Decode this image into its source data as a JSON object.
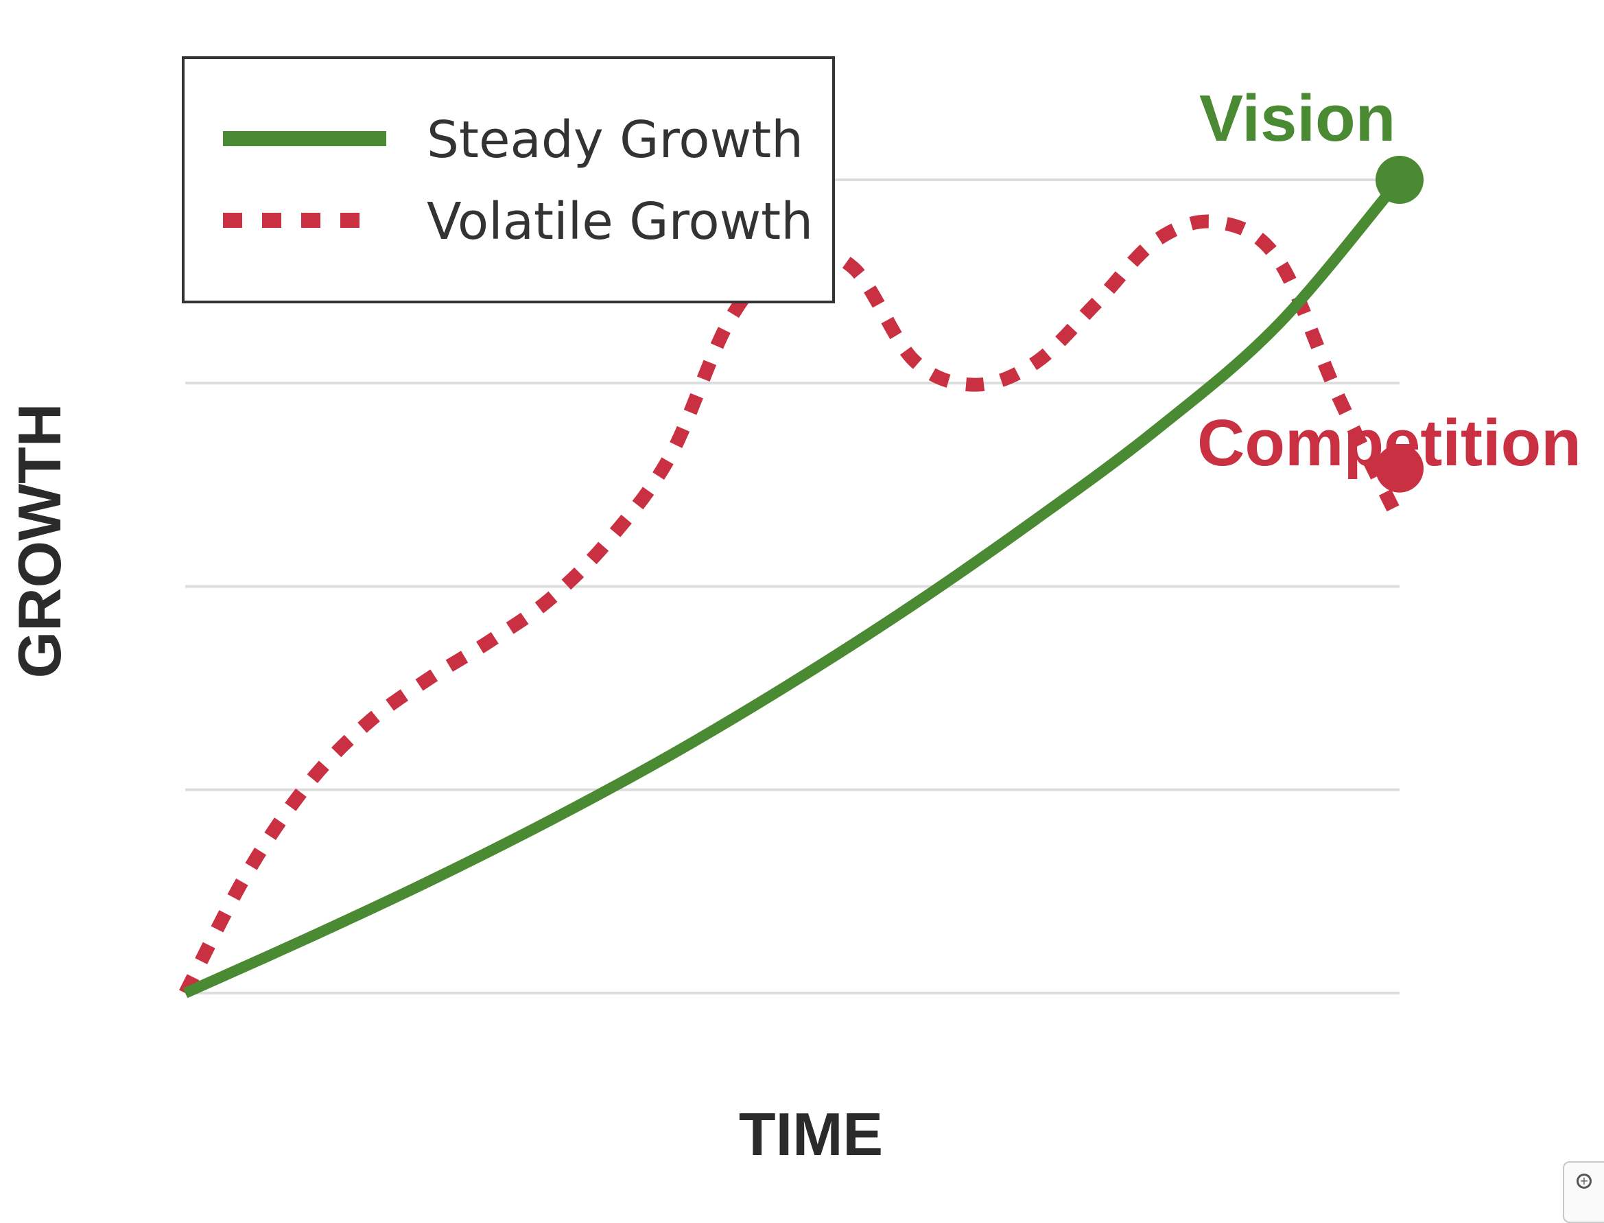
{
  "chart_data": {
    "type": "line",
    "title": "",
    "xlabel": "TIME",
    "ylabel": "GROWTH",
    "xlim": [
      0,
      10
    ],
    "ylim": [
      0,
      10
    ],
    "grid": "horizontal",
    "yticks": [
      0,
      2.5,
      5,
      7.5,
      10
    ],
    "legend": {
      "placement": "top-left",
      "entries": [
        "Steady Growth",
        "Volatile Growth"
      ]
    },
    "series": [
      {
        "name": "Steady Growth",
        "style": "solid",
        "color": "#4a8a33",
        "x": [
          0,
          1,
          2,
          3,
          4,
          5,
          6,
          7,
          8,
          9,
          10
        ],
        "y": [
          0,
          0.67,
          1.37,
          2.12,
          2.93,
          3.82,
          4.78,
          5.82,
          6.93,
          8.22,
          10
        ]
      },
      {
        "name": "Volatile Growth",
        "style": "dotted",
        "color": "#c93142",
        "x": [
          0,
          0.5,
          1,
          1.5,
          2,
          2.5,
          3,
          3.5,
          4,
          4.5,
          5,
          5.5,
          6,
          6.5,
          7,
          7.5,
          8,
          8.5,
          9,
          9.5,
          10
        ],
        "y": [
          0,
          1.45,
          2.55,
          3.32,
          3.86,
          4.32,
          4.84,
          5.59,
          6.62,
          8.32,
          9.08,
          8.92,
          7.78,
          7.48,
          7.75,
          8.48,
          9.26,
          9.48,
          9.02,
          7.32,
          5.8
        ]
      }
    ],
    "annotations": [
      {
        "text": "Vision",
        "color": "#4a8a33",
        "x": 10,
        "y": 10
      },
      {
        "text": "Competition",
        "color": "#c93142",
        "x": 10,
        "y": 6.45
      }
    ]
  }
}
